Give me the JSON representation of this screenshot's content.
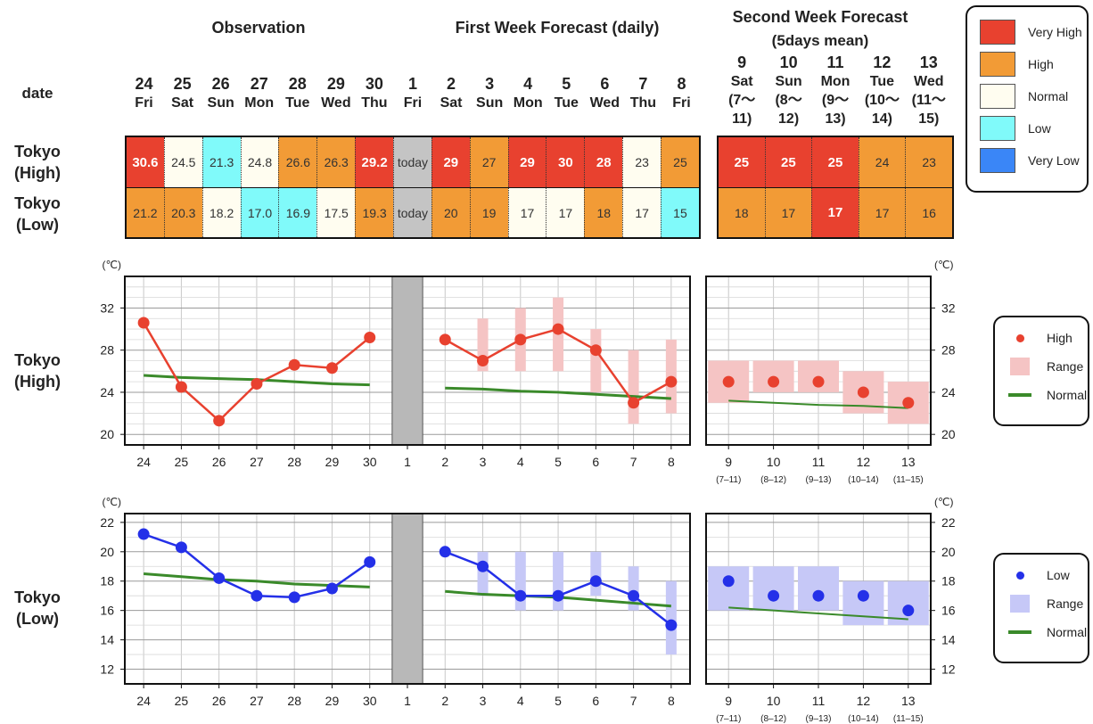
{
  "headers": {
    "observation": "Observation",
    "first_week": "First Week Forecast (daily)",
    "second_week_l1": "Second Week Forecast",
    "second_week_l2": "(5days mean)",
    "date_label": "date"
  },
  "days": [
    {
      "d": "24",
      "w": "Fri"
    },
    {
      "d": "25",
      "w": "Sat"
    },
    {
      "d": "26",
      "w": "Sun"
    },
    {
      "d": "27",
      "w": "Mon"
    },
    {
      "d": "28",
      "w": "Tue"
    },
    {
      "d": "29",
      "w": "Wed"
    },
    {
      "d": "30",
      "w": "Thu"
    },
    {
      "d": "1",
      "w": "Fri"
    },
    {
      "d": "2",
      "w": "Sat"
    },
    {
      "d": "3",
      "w": "Sun"
    },
    {
      "d": "4",
      "w": "Mon"
    },
    {
      "d": "5",
      "w": "Tue"
    },
    {
      "d": "6",
      "w": "Wed"
    },
    {
      "d": "7",
      "w": "Thu"
    },
    {
      "d": "8",
      "w": "Fri"
    }
  ],
  "second_days": [
    {
      "d": "9",
      "w": "Sat",
      "r1": "(7〜",
      "r2": "11)"
    },
    {
      "d": "10",
      "w": "Sun",
      "r1": "(8〜",
      "r2": "12)"
    },
    {
      "d": "11",
      "w": "Mon",
      "r1": "(9〜",
      "r2": "13)"
    },
    {
      "d": "12",
      "w": "Tue",
      "r1": "(10〜",
      "r2": "14)"
    },
    {
      "d": "13",
      "w": "Wed",
      "r1": "(11〜",
      "r2": "15)"
    }
  ],
  "table": {
    "high_label_1": "Tokyo",
    "high_label_2": "(High)",
    "low_label_1": "Tokyo",
    "low_label_2": "(Low)",
    "high": [
      {
        "v": "30.6",
        "c": "vh"
      },
      {
        "v": "24.5",
        "c": "n"
      },
      {
        "v": "21.3",
        "c": "l"
      },
      {
        "v": "24.8",
        "c": "n"
      },
      {
        "v": "26.6",
        "c": "h"
      },
      {
        "v": "26.3",
        "c": "h"
      },
      {
        "v": "29.2",
        "c": "vh"
      },
      {
        "v": "today",
        "c": "today"
      },
      {
        "v": "29",
        "c": "vh"
      },
      {
        "v": "27",
        "c": "h"
      },
      {
        "v": "29",
        "c": "vh"
      },
      {
        "v": "30",
        "c": "vh"
      },
      {
        "v": "28",
        "c": "vh"
      },
      {
        "v": "23",
        "c": "n"
      },
      {
        "v": "25",
        "c": "h"
      }
    ],
    "low": [
      {
        "v": "21.2",
        "c": "h"
      },
      {
        "v": "20.3",
        "c": "h"
      },
      {
        "v": "18.2",
        "c": "n"
      },
      {
        "v": "17.0",
        "c": "l"
      },
      {
        "v": "16.9",
        "c": "l"
      },
      {
        "v": "17.5",
        "c": "n"
      },
      {
        "v": "19.3",
        "c": "h"
      },
      {
        "v": "today",
        "c": "today"
      },
      {
        "v": "20",
        "c": "h"
      },
      {
        "v": "19",
        "c": "h"
      },
      {
        "v": "17",
        "c": "n"
      },
      {
        "v": "17",
        "c": "n"
      },
      {
        "v": "18",
        "c": "h"
      },
      {
        "v": "17",
        "c": "n"
      },
      {
        "v": "15",
        "c": "l"
      }
    ],
    "high2": [
      {
        "v": "25",
        "c": "vh"
      },
      {
        "v": "25",
        "c": "vh"
      },
      {
        "v": "25",
        "c": "vh"
      },
      {
        "v": "24",
        "c": "h"
      },
      {
        "v": "23",
        "c": "h"
      }
    ],
    "low2": [
      {
        "v": "18",
        "c": "h"
      },
      {
        "v": "17",
        "c": "h"
      },
      {
        "v": "17",
        "c": "vh"
      },
      {
        "v": "17",
        "c": "h"
      },
      {
        "v": "16",
        "c": "h"
      }
    ]
  },
  "category_legend": [
    {
      "label": "Very High",
      "color": "#e8412f"
    },
    {
      "label": "High",
      "color": "#f29b36"
    },
    {
      "label": "Normal",
      "color": "#fffdf0"
    },
    {
      "label": "Low",
      "color": "#80fafa"
    },
    {
      "label": "Very Low",
      "color": "#3a86f7"
    }
  ],
  "chart_data": [
    {
      "type": "line",
      "row_label_1": "Tokyo",
      "row_label_2": "(High)",
      "unit": "(℃)",
      "ylim": [
        19,
        35
      ],
      "yticks": [
        20,
        24,
        28,
        32
      ],
      "x": [
        "24",
        "25",
        "26",
        "27",
        "28",
        "29",
        "30",
        "1",
        "2",
        "3",
        "4",
        "5",
        "6",
        "7",
        "8"
      ],
      "x2": [
        "9",
        "10",
        "11",
        "12",
        "13"
      ],
      "x2_sub": [
        "(7–11)",
        "(8–12)",
        "(9–13)",
        "(10–14)",
        "(11–15)"
      ],
      "color": "#e8412f",
      "range_color": "#f5c4c4",
      "normal_color": "#3a8a2a",
      "observed": [
        30.6,
        24.5,
        21.3,
        24.8,
        26.6,
        26.3,
        29.2
      ],
      "forecast": [
        29,
        27,
        29,
        30,
        28,
        23,
        25
      ],
      "forecast_range": [
        null,
        [
          26,
          31
        ],
        [
          26,
          32
        ],
        [
          26,
          33
        ],
        [
          24,
          30
        ],
        [
          21,
          28
        ],
        [
          22,
          29
        ]
      ],
      "normal_obs": [
        25.6,
        25.4,
        25.3,
        25.2,
        25.0,
        24.8,
        24.7
      ],
      "normal_fc": [
        24.4,
        24.3,
        24.1,
        24.0,
        23.8,
        23.6,
        23.4
      ],
      "week2": [
        25,
        25,
        25,
        24,
        23
      ],
      "week2_range": [
        [
          23,
          27
        ],
        [
          24,
          27
        ],
        [
          24,
          27
        ],
        [
          22,
          26
        ],
        [
          21,
          25
        ]
      ],
      "week2_normal": [
        23.2,
        23.0,
        22.8,
        22.7,
        22.5
      ],
      "legend": [
        "High",
        "Range",
        "Normal"
      ]
    },
    {
      "type": "line",
      "row_label_1": "Tokyo",
      "row_label_2": "(Low)",
      "unit": "(℃)",
      "ylim": [
        11,
        22.6
      ],
      "yticks": [
        12,
        14,
        16,
        18,
        20,
        22
      ],
      "x": [
        "24",
        "25",
        "26",
        "27",
        "28",
        "29",
        "30",
        "1",
        "2",
        "3",
        "4",
        "5",
        "6",
        "7",
        "8"
      ],
      "x2": [
        "9",
        "10",
        "11",
        "12",
        "13"
      ],
      "x2_sub": [
        "(7–11)",
        "(8–12)",
        "(9–13)",
        "(10–14)",
        "(11–15)"
      ],
      "color": "#2430e8",
      "range_color": "#c6c8f7",
      "normal_color": "#3a8a2a",
      "observed": [
        21.2,
        20.3,
        18.2,
        17.0,
        16.9,
        17.5,
        19.3
      ],
      "forecast": [
        20,
        19,
        17,
        17,
        18,
        17,
        15
      ],
      "forecast_range": [
        null,
        [
          17,
          20
        ],
        [
          16,
          20
        ],
        [
          16,
          20
        ],
        [
          17,
          20
        ],
        [
          16,
          19
        ],
        [
          13,
          18
        ]
      ],
      "normal_obs": [
        18.5,
        18.3,
        18.1,
        18.0,
        17.8,
        17.7,
        17.6
      ],
      "normal_fc": [
        17.3,
        17.1,
        17.0,
        16.9,
        16.7,
        16.5,
        16.3
      ],
      "week2": [
        18,
        17,
        17,
        17,
        16
      ],
      "week2_range": [
        [
          16,
          19
        ],
        [
          16,
          19
        ],
        [
          16,
          19
        ],
        [
          15,
          18
        ],
        [
          15,
          18
        ]
      ],
      "week2_normal": [
        16.2,
        16.0,
        15.8,
        15.6,
        15.4
      ],
      "legend": [
        "Low",
        "Range",
        "Normal"
      ]
    }
  ]
}
